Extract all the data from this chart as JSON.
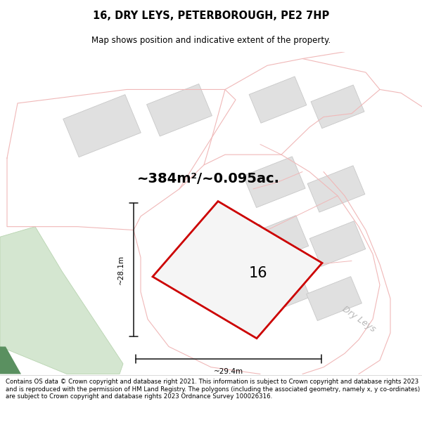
{
  "title": "16, DRY LEYS, PETERBOROUGH, PE2 7HP",
  "subtitle": "Map shows position and indicative extent of the property.",
  "area_text": "~384m²/~0.095ac.",
  "dim_width": "~29.4m",
  "dim_height": "~28.1m",
  "property_number": "16",
  "map_bg": "#f9f9f8",
  "building_fill": "#e0e0e0",
  "building_edge": "#c8c8c8",
  "green_fill": "#d4e6d0",
  "green_edge": "#b8d4b0",
  "dark_green_fill": "#5a9060",
  "property_stroke": "#cc0000",
  "property_fill": "#f5f5f5",
  "road_pink": "#f0b8b8",
  "road_label_color": "#b8b8b8",
  "dim_color": "#111111",
  "title_fontsize": 10.5,
  "subtitle_fontsize": 8.5,
  "footnote_fontsize": 6.2,
  "area_fontsize": 14,
  "num_fontsize": 15,
  "road_label_fontsize": 9,
  "footnote": "Contains OS data © Crown copyright and database right 2021. This information is subject to Crown copyright and database rights 2023 and is reproduced with the permission of HM Land Registry. The polygons (including the associated geometry, namely x, y co-ordinates) are subject to Crown copyright and database rights 2023 Ordnance Survey 100026316."
}
